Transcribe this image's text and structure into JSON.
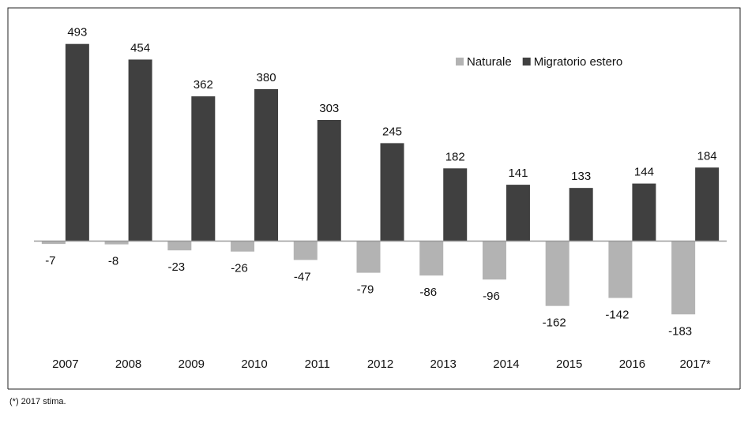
{
  "chart_data": {
    "type": "bar",
    "categories": [
      "2007",
      "2008",
      "2009",
      "2010",
      "2011",
      "2012",
      "2013",
      "2014",
      "2015",
      "2016",
      "2017*"
    ],
    "series": [
      {
        "name": "Naturale",
        "color": "#b3b3b3",
        "values": [
          -7,
          -8,
          -23,
          -26,
          -47,
          -79,
          -86,
          -96,
          -162,
          -142,
          -183
        ]
      },
      {
        "name": "Migratorio estero",
        "color": "#404040",
        "values": [
          493,
          454,
          362,
          380,
          303,
          245,
          182,
          141,
          133,
          144,
          184
        ]
      }
    ],
    "ylim": [
      -210,
      520
    ],
    "legend": "top-right",
    "footnote": "(*) 2017 stima."
  }
}
